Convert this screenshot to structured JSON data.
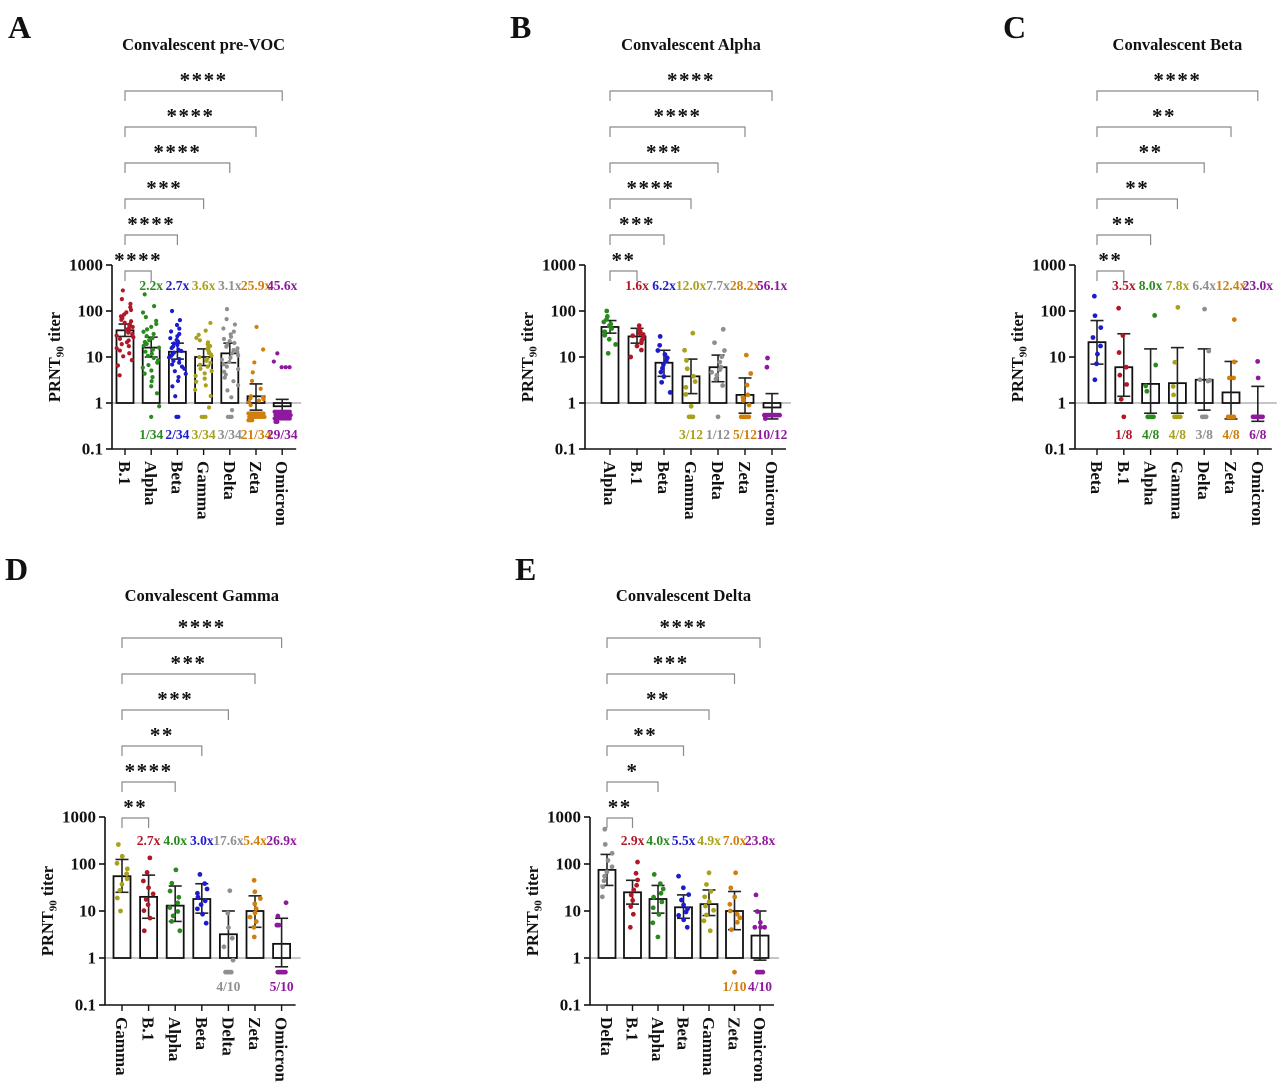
{
  "figure": {
    "background": "#ffffff",
    "y_axis": {
      "label_main": "PRNT",
      "label_sub": "90",
      "label_tail": " titer",
      "scale": "log",
      "limits": [
        0.1,
        1000
      ],
      "ticks": [
        "1000",
        "100",
        "10",
        "1",
        "0.1"
      ]
    },
    "below_limit_value": 0.5,
    "variant_colors": {
      "B.1": "#b01828",
      "Alpha": "#2a8a1e",
      "Beta": "#1c1ccd",
      "Gamma": "#a8a119",
      "Delta": "#8f8f8f",
      "Zeta": "#d07f0e",
      "Omicron": "#8e199e"
    },
    "significance_bracket_color": "#8a8a8a",
    "star_color": "#111111"
  },
  "chart_data": [
    {
      "panel": "A",
      "type": "bar",
      "title": "Convalescent pre-VOC",
      "ylabel": "PRNT90 titer",
      "n_sera": 34,
      "categories": [
        "B.1",
        "Alpha",
        "Beta",
        "Gamma",
        "Delta",
        "Zeta",
        "Omicron"
      ],
      "bar_geometric_means": [
        38,
        16,
        13,
        10,
        12,
        1.4,
        0.85
      ],
      "err_low": [
        28,
        10,
        9,
        6.5,
        7.5,
        0.7,
        0.6
      ],
      "err_high": [
        52,
        27,
        20,
        15,
        20,
        2.6,
        1.2
      ],
      "points_min": [
        4,
        0.85,
        1.4,
        0.8,
        0.7,
        0.9,
        6
      ],
      "points_max": [
        280,
        230,
        100,
        55,
        110,
        45,
        12
      ],
      "below_limit_n": [
        0,
        1,
        2,
        3,
        3,
        21,
        29
      ],
      "below_limit_labels": [
        "",
        "1/34",
        "2/34",
        "3/34",
        "3/34",
        "21/34",
        "29/34"
      ],
      "fold_change_labels": [
        "",
        "2.2x",
        "2.7x",
        "3.6x",
        "3.1x",
        "25.9x",
        "45.6x"
      ],
      "significance_vs_first": [
        "****",
        "****",
        "***",
        "****",
        "****",
        "****"
      ]
    },
    {
      "panel": "B",
      "type": "bar",
      "title": "Convalescent Alpha",
      "ylabel": "PRNT90 titer",
      "n_sera": 12,
      "categories": [
        "Alpha",
        "B.1",
        "Beta",
        "Gamma",
        "Delta",
        "Zeta",
        "Omicron"
      ],
      "bar_geometric_means": [
        45,
        28,
        7.5,
        3.8,
        6,
        1.5,
        0.8
      ],
      "err_low": [
        33,
        20,
        3.8,
        1.6,
        2.9,
        0.6,
        0.45
      ],
      "err_high": [
        62,
        42,
        14,
        9,
        11,
        3.5,
        1.6
      ],
      "points_min": [
        12,
        10,
        1.7,
        0.85,
        2.4,
        0.9,
        6
      ],
      "points_max": [
        100,
        48,
        28,
        33,
        40,
        11,
        9.5
      ],
      "below_limit_n": [
        0,
        0,
        0,
        3,
        1,
        5,
        10
      ],
      "below_limit_labels": [
        "",
        "",
        "",
        "3/12",
        "1/12",
        "5/12",
        "10/12"
      ],
      "fold_change_labels": [
        "",
        "1.6x",
        "6.2x",
        "12.0x",
        "7.7x",
        "28.2x",
        "56.1x"
      ],
      "significance_vs_first": [
        "**",
        "***",
        "****",
        "***",
        "****",
        "****"
      ]
    },
    {
      "panel": "C",
      "type": "bar",
      "title": "Convalescent Beta",
      "ylabel": "PRNT90 titer",
      "n_sera": 8,
      "categories": [
        "Beta",
        "B.1",
        "Alpha",
        "Gamma",
        "Delta",
        "Zeta",
        "Omicron"
      ],
      "bar_geometric_means": [
        21,
        6,
        2.6,
        2.7,
        3.2,
        1.7,
        1.0
      ],
      "err_low": [
        7,
        1.4,
        0.6,
        0.6,
        0.7,
        0.45,
        0.4
      ],
      "err_high": [
        62,
        32,
        15,
        16,
        15,
        8,
        2.3
      ],
      "points_min": [
        3.2,
        1.2,
        1.8,
        1.5,
        3,
        3.5,
        3.5
      ],
      "points_max": [
        210,
        115,
        80,
        120,
        110,
        65,
        8
      ],
      "below_limit_n": [
        0,
        1,
        4,
        4,
        3,
        4,
        6
      ],
      "below_limit_labels": [
        "",
        "1/8",
        "4/8",
        "4/8",
        "3/8",
        "4/8",
        "6/8"
      ],
      "fold_change_labels": [
        "",
        "3.5x",
        "8.0x",
        "7.8x",
        "6.4x",
        "12.4x",
        "23.0x"
      ],
      "significance_vs_first": [
        "**",
        "**",
        "**",
        "**",
        "**",
        "****"
      ]
    },
    {
      "panel": "D",
      "type": "bar",
      "title": "Convalescent Gamma",
      "ylabel": "PRNT90 titer",
      "n_sera": 10,
      "categories": [
        "Gamma",
        "B.1",
        "Alpha",
        "Beta",
        "Delta",
        "Zeta",
        "Omicron"
      ],
      "bar_geometric_means": [
        55,
        20,
        13,
        18,
        3.2,
        10,
        2
      ],
      "err_low": [
        25,
        7,
        6,
        9,
        1,
        4.5,
        0.65
      ],
      "err_high": [
        125,
        58,
        34,
        38,
        10,
        21,
        7
      ],
      "points_min": [
        10,
        3.8,
        3.8,
        5.5,
        0.9,
        2.8,
        5
      ],
      "points_max": [
        260,
        135,
        75,
        60,
        27,
        45,
        15
      ],
      "below_limit_n": [
        0,
        0,
        0,
        0,
        4,
        0,
        5
      ],
      "below_limit_labels": [
        "",
        "",
        "",
        "",
        "4/10",
        "",
        "5/10"
      ],
      "fold_change_labels": [
        "",
        "2.7x",
        "4.0x",
        "3.0x",
        "17.6x",
        "5.4x",
        "26.9x"
      ],
      "significance_vs_first": [
        "**",
        "****",
        "**",
        "***",
        "***",
        "****"
      ]
    },
    {
      "panel": "E",
      "type": "bar",
      "title": "Convalescent Delta",
      "ylabel": "PRNT90 titer",
      "n_sera": 10,
      "categories": [
        "Delta",
        "B.1",
        "Alpha",
        "Beta",
        "Gamma",
        "Zeta",
        "Omicron"
      ],
      "bar_geometric_means": [
        75,
        25,
        18,
        12,
        14,
        10,
        3
      ],
      "err_low": [
        35,
        14,
        9,
        7,
        8,
        4,
        0.9
      ],
      "err_high": [
        160,
        45,
        35,
        22,
        28,
        26,
        10
      ],
      "points_min": [
        20,
        4.5,
        2.8,
        4.5,
        3.8,
        4,
        4.5
      ],
      "points_max": [
        550,
        110,
        60,
        55,
        65,
        65,
        22
      ],
      "below_limit_n": [
        0,
        0,
        0,
        0,
        0,
        1,
        4
      ],
      "below_limit_labels": [
        "",
        "",
        "",
        "",
        "",
        "1/10",
        "4/10"
      ],
      "fold_change_labels": [
        "",
        "2.9x",
        "4.0x",
        "5.5x",
        "4.9x",
        "7.0x",
        "23.8x"
      ],
      "significance_vs_first": [
        "**",
        "*",
        "**",
        "**",
        "***",
        "****"
      ]
    }
  ]
}
